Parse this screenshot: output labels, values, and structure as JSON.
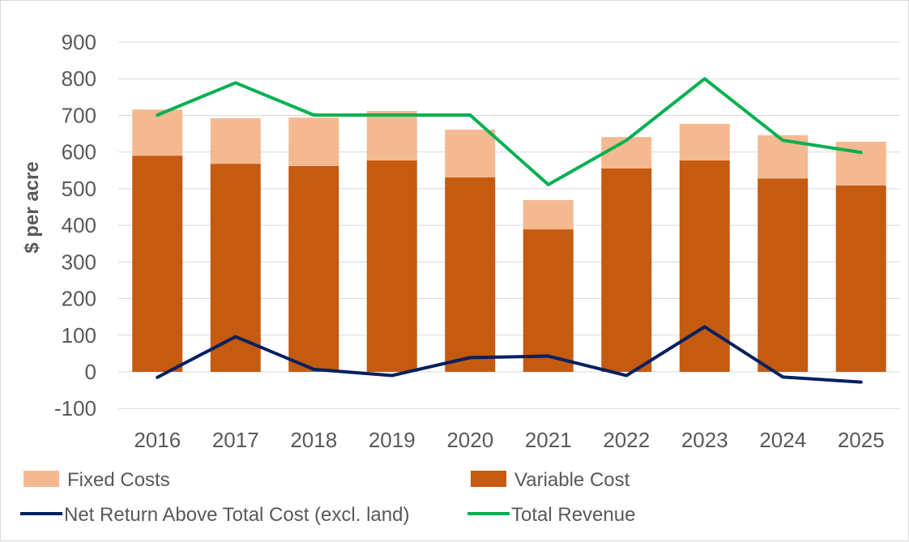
{
  "chart_data": {
    "type": "bar",
    "stacked": true,
    "categories": [
      "2016",
      "2017",
      "2018",
      "2019",
      "2020",
      "2021",
      "2022",
      "2023",
      "2024",
      "2025"
    ],
    "ylabel": "$ per acre",
    "ylim": [
      -100,
      900
    ],
    "yticks": [
      -100,
      0,
      100,
      200,
      300,
      400,
      500,
      600,
      700,
      800,
      900
    ],
    "grid": true,
    "legend_position": "bottom",
    "series": [
      {
        "name": "Variable Cost",
        "type": "bar",
        "color": "#C55A11",
        "values": [
          590,
          568,
          562,
          577,
          531,
          389,
          555,
          577,
          528,
          509
        ]
      },
      {
        "name": "Fixed Costs",
        "type": "bar",
        "color": "#F4B990",
        "values": [
          126,
          124,
          132,
          135,
          130,
          80,
          86,
          100,
          118,
          119
        ]
      },
      {
        "name": "Net Return Above Total Cost (excl. land)",
        "type": "line",
        "color": "#002060",
        "values": [
          -15,
          96,
          7,
          -10,
          39,
          43,
          -10,
          123,
          -14,
          -28
        ]
      },
      {
        "name": "Total Revenue",
        "type": "line",
        "color": "#00B050",
        "values": [
          701,
          789,
          701,
          701,
          701,
          511,
          632,
          800,
          632,
          599
        ]
      }
    ]
  }
}
